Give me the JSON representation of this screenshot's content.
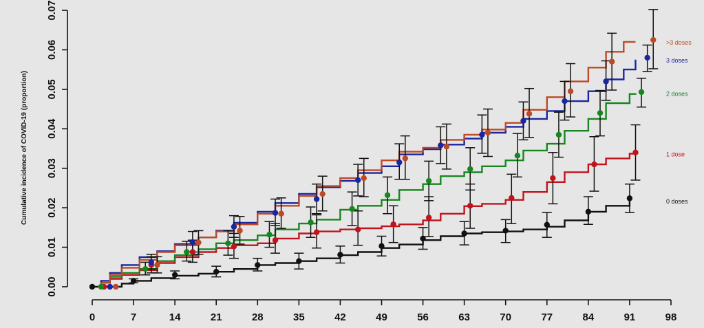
{
  "chart_data": {
    "type": "line",
    "title": "",
    "xlabel": "",
    "ylabel": "Cumulative incidence of COVID-19 (proportion)",
    "xlim": [
      0,
      98
    ],
    "ylim": [
      0,
      0.07
    ],
    "grid": false,
    "x_ticks": [
      0,
      7,
      14,
      21,
      28,
      35,
      42,
      49,
      56,
      63,
      70,
      77,
      84,
      91,
      98
    ],
    "y_ticks": [
      0.0,
      0.01,
      0.02,
      0.03,
      0.04,
      0.05,
      0.06,
      0.07
    ],
    "y_tick_labels": [
      "0.00",
      "0.01",
      "0.02",
      "0.03",
      "0.04",
      "0.05",
      "0.06",
      "0.07"
    ],
    "series": [
      {
        "name": "0 doses",
        "color": "#111111",
        "line": [
          [
            0,
            0
          ],
          [
            3,
            0
          ],
          [
            5,
            0.0008
          ],
          [
            7,
            0.0015
          ],
          [
            10,
            0.0022
          ],
          [
            14,
            0.0028
          ],
          [
            18,
            0.0033
          ],
          [
            21,
            0.0038
          ],
          [
            24,
            0.0045
          ],
          [
            28,
            0.0055
          ],
          [
            31,
            0.006
          ],
          [
            35,
            0.0065
          ],
          [
            38,
            0.0072
          ],
          [
            42,
            0.008
          ],
          [
            45,
            0.0088
          ],
          [
            49,
            0.0098
          ],
          [
            52,
            0.0107
          ],
          [
            56,
            0.0118
          ],
          [
            59,
            0.0128
          ],
          [
            63,
            0.0135
          ],
          [
            66,
            0.0138
          ],
          [
            70,
            0.014
          ],
          [
            73,
            0.0145
          ],
          [
            77,
            0.0152
          ],
          [
            80,
            0.0168
          ],
          [
            84,
            0.019
          ],
          [
            87,
            0.0205
          ],
          [
            91,
            0.0218
          ]
        ],
        "points": [
          {
            "x": 0,
            "y": 0
          },
          {
            "x": 7,
            "y": 0.0015,
            "lo": 0.001,
            "hi": 0.002
          },
          {
            "x": 14,
            "y": 0.003,
            "lo": 0.002,
            "hi": 0.004
          },
          {
            "x": 21,
            "y": 0.0038,
            "lo": 0.0025,
            "hi": 0.0052
          },
          {
            "x": 28,
            "y": 0.0055,
            "lo": 0.004,
            "hi": 0.0072
          },
          {
            "x": 35,
            "y": 0.0065,
            "lo": 0.0045,
            "hi": 0.0085
          },
          {
            "x": 42,
            "y": 0.0081,
            "lo": 0.006,
            "hi": 0.0103
          },
          {
            "x": 49,
            "y": 0.0103,
            "lo": 0.0078,
            "hi": 0.0128
          },
          {
            "x": 56,
            "y": 0.0122,
            "lo": 0.0095,
            "hi": 0.015
          },
          {
            "x": 63,
            "y": 0.0135,
            "lo": 0.0106,
            "hi": 0.0165
          },
          {
            "x": 70,
            "y": 0.0142,
            "lo": 0.0112,
            "hi": 0.017
          },
          {
            "x": 77,
            "y": 0.0157,
            "lo": 0.0125,
            "hi": 0.0188
          },
          {
            "x": 84,
            "y": 0.019,
            "lo": 0.0158,
            "hi": 0.0228
          },
          {
            "x": 91,
            "y": 0.0224,
            "lo": 0.0188,
            "hi": 0.026
          }
        ]
      },
      {
        "name": "1 dose",
        "color": "#c0141c",
        "line": [
          [
            1,
            0
          ],
          [
            1.5,
            0.001
          ],
          [
            3,
            0.002
          ],
          [
            5,
            0.003
          ],
          [
            8,
            0.0042
          ],
          [
            11,
            0.006
          ],
          [
            14,
            0.0075
          ],
          [
            18,
            0.0088
          ],
          [
            21,
            0.0098
          ],
          [
            24,
            0.0105
          ],
          [
            28,
            0.011
          ],
          [
            31,
            0.0122
          ],
          [
            35,
            0.0135
          ],
          [
            38,
            0.014
          ],
          [
            42,
            0.0145
          ],
          [
            45,
            0.0148
          ],
          [
            49,
            0.0153
          ],
          [
            52,
            0.0158
          ],
          [
            56,
            0.0168
          ],
          [
            59,
            0.0185
          ],
          [
            63,
            0.0204
          ],
          [
            66,
            0.021
          ],
          [
            70,
            0.022
          ],
          [
            73,
            0.024
          ],
          [
            77,
            0.0265
          ],
          [
            80,
            0.029
          ],
          [
            84,
            0.031
          ],
          [
            87,
            0.0325
          ],
          [
            91,
            0.0337
          ],
          [
            92,
            0.0337
          ]
        ],
        "points": [
          {
            "x": 2,
            "y": 0
          },
          {
            "x": 10,
            "y": 0.0055,
            "lo": 0.0035,
            "hi": 0.0076
          },
          {
            "x": 17,
            "y": 0.0088,
            "lo": 0.0062,
            "hi": 0.0118
          },
          {
            "x": 24,
            "y": 0.0102,
            "lo": 0.0072,
            "hi": 0.0135
          },
          {
            "x": 31,
            "y": 0.0118,
            "lo": 0.0085,
            "hi": 0.016
          },
          {
            "x": 38,
            "y": 0.0138,
            "lo": 0.0098,
            "hi": 0.0182
          },
          {
            "x": 45,
            "y": 0.0145,
            "lo": 0.0105,
            "hi": 0.0192
          },
          {
            "x": 51,
            "y": 0.0158,
            "lo": 0.0112,
            "hi": 0.0205
          },
          {
            "x": 57,
            "y": 0.0175,
            "lo": 0.0127,
            "hi": 0.0228
          },
          {
            "x": 64,
            "y": 0.0205,
            "lo": 0.0148,
            "hi": 0.026
          },
          {
            "x": 71,
            "y": 0.0225,
            "lo": 0.016,
            "hi": 0.0285
          },
          {
            "x": 78,
            "y": 0.0275,
            "lo": 0.021,
            "hi": 0.034
          },
          {
            "x": 85,
            "y": 0.031,
            "lo": 0.0242,
            "hi": 0.038
          },
          {
            "x": 92,
            "y": 0.034,
            "lo": 0.027,
            "hi": 0.041
          }
        ]
      },
      {
        "name": "2 doses",
        "color": "#17861f",
        "line": [
          [
            1,
            0
          ],
          [
            1.5,
            0.001
          ],
          [
            3,
            0.0025
          ],
          [
            5,
            0.0035
          ],
          [
            8,
            0.0045
          ],
          [
            11,
            0.0065
          ],
          [
            14,
            0.008
          ],
          [
            18,
            0.0095
          ],
          [
            21,
            0.011
          ],
          [
            24,
            0.0118
          ],
          [
            28,
            0.013
          ],
          [
            31,
            0.0145
          ],
          [
            35,
            0.016
          ],
          [
            38,
            0.017
          ],
          [
            42,
            0.0195
          ],
          [
            45,
            0.0205
          ],
          [
            49,
            0.022
          ],
          [
            52,
            0.0245
          ],
          [
            56,
            0.026
          ],
          [
            59,
            0.028
          ],
          [
            63,
            0.029
          ],
          [
            66,
            0.0305
          ],
          [
            70,
            0.032
          ],
          [
            73,
            0.0345
          ],
          [
            77,
            0.0362
          ],
          [
            80,
            0.0395
          ],
          [
            84,
            0.0425
          ],
          [
            87,
            0.0465
          ],
          [
            91,
            0.0488
          ],
          [
            92,
            0.049
          ]
        ],
        "points": [
          {
            "x": 1.5,
            "y": 0
          },
          {
            "x": 9,
            "y": 0.0045,
            "lo": 0.003,
            "hi": 0.0062
          },
          {
            "x": 16,
            "y": 0.0088,
            "lo": 0.0065,
            "hi": 0.0115
          },
          {
            "x": 23,
            "y": 0.011,
            "lo": 0.008,
            "hi": 0.0142
          },
          {
            "x": 30,
            "y": 0.0132,
            "lo": 0.01,
            "hi": 0.0165
          },
          {
            "x": 37,
            "y": 0.0163,
            "lo": 0.0125,
            "hi": 0.0202
          },
          {
            "x": 44,
            "y": 0.0197,
            "lo": 0.0155,
            "hi": 0.024
          },
          {
            "x": 50,
            "y": 0.0232,
            "lo": 0.0185,
            "hi": 0.0278
          },
          {
            "x": 57,
            "y": 0.0268,
            "lo": 0.0218,
            "hi": 0.0318
          },
          {
            "x": 64,
            "y": 0.0298,
            "lo": 0.0245,
            "hi": 0.0352
          },
          {
            "x": 72,
            "y": 0.0332,
            "lo": 0.0278,
            "hi": 0.0388
          },
          {
            "x": 79,
            "y": 0.0385,
            "lo": 0.0328,
            "hi": 0.0442
          },
          {
            "x": 86,
            "y": 0.044,
            "lo": 0.0382,
            "hi": 0.0497
          },
          {
            "x": 93,
            "y": 0.0493,
            "lo": 0.0455,
            "hi": 0.0528
          }
        ]
      },
      {
        "name": "3 doses",
        "color": "#1a25a0",
        "line": [
          [
            1,
            0
          ],
          [
            1.5,
            0.0015
          ],
          [
            3,
            0.0035
          ],
          [
            5,
            0.0055
          ],
          [
            8,
            0.0075
          ],
          [
            11,
            0.009
          ],
          [
            14,
            0.0108
          ],
          [
            18,
            0.0125
          ],
          [
            21,
            0.0142
          ],
          [
            24,
            0.0162
          ],
          [
            28,
            0.019
          ],
          [
            31,
            0.0212
          ],
          [
            35,
            0.0235
          ],
          [
            38,
            0.0252
          ],
          [
            42,
            0.0268
          ],
          [
            45,
            0.0288
          ],
          [
            49,
            0.0305
          ],
          [
            52,
            0.0335
          ],
          [
            56,
            0.0348
          ],
          [
            59,
            0.036
          ],
          [
            63,
            0.0375
          ],
          [
            66,
            0.039
          ],
          [
            70,
            0.0405
          ],
          [
            73,
            0.0425
          ],
          [
            77,
            0.0445
          ],
          [
            80,
            0.047
          ],
          [
            84,
            0.0495
          ],
          [
            87,
            0.0525
          ],
          [
            90,
            0.055
          ],
          [
            92,
            0.0575
          ]
        ],
        "points": [
          {
            "x": 3,
            "y": 0
          },
          {
            "x": 10,
            "y": 0.0062,
            "lo": 0.0045,
            "hi": 0.0082
          },
          {
            "x": 17,
            "y": 0.0113,
            "lo": 0.0088,
            "hi": 0.014
          },
          {
            "x": 24,
            "y": 0.0152,
            "lo": 0.0125,
            "hi": 0.018
          },
          {
            "x": 31,
            "y": 0.0187,
            "lo": 0.0155,
            "hi": 0.0222
          },
          {
            "x": 38,
            "y": 0.0222,
            "lo": 0.0185,
            "hi": 0.026
          },
          {
            "x": 45,
            "y": 0.027,
            "lo": 0.023,
            "hi": 0.031
          },
          {
            "x": 52,
            "y": 0.0315,
            "lo": 0.0272,
            "hi": 0.0362
          },
          {
            "x": 59,
            "y": 0.0358,
            "lo": 0.0312,
            "hi": 0.0405
          },
          {
            "x": 66,
            "y": 0.0385,
            "lo": 0.0338,
            "hi": 0.0435
          },
          {
            "x": 73,
            "y": 0.042,
            "lo": 0.0372,
            "hi": 0.0468
          },
          {
            "x": 80,
            "y": 0.047,
            "lo": 0.0422,
            "hi": 0.052
          },
          {
            "x": 87,
            "y": 0.052,
            "lo": 0.0472,
            "hi": 0.0572
          },
          {
            "x": 94,
            "y": 0.058,
            "lo": 0.0545,
            "hi": 0.0612
          }
        ]
      },
      {
        "name": ">3 doses",
        "color": "#bd4a25",
        "line": [
          [
            1,
            0
          ],
          [
            1.5,
            0.001
          ],
          [
            3,
            0.003
          ],
          [
            5,
            0.0048
          ],
          [
            8,
            0.0068
          ],
          [
            11,
            0.0088
          ],
          [
            14,
            0.0105
          ],
          [
            18,
            0.0125
          ],
          [
            21,
            0.014
          ],
          [
            24,
            0.0158
          ],
          [
            28,
            0.0185
          ],
          [
            31,
            0.0205
          ],
          [
            35,
            0.023
          ],
          [
            38,
            0.0255
          ],
          [
            42,
            0.0275
          ],
          [
            45,
            0.0295
          ],
          [
            49,
            0.032
          ],
          [
            52,
            0.0342
          ],
          [
            56,
            0.0352
          ],
          [
            59,
            0.0372
          ],
          [
            63,
            0.0385
          ],
          [
            66,
            0.0398
          ],
          [
            70,
            0.0415
          ],
          [
            73,
            0.0448
          ],
          [
            77,
            0.048
          ],
          [
            80,
            0.052
          ],
          [
            84,
            0.0555
          ],
          [
            87,
            0.0595
          ],
          [
            90,
            0.062
          ],
          [
            92,
            0.062
          ]
        ],
        "points": [
          {
            "x": 4,
            "y": 0
          },
          {
            "x": 11,
            "y": 0.0055,
            "lo": 0.0035,
            "hi": 0.0076
          },
          {
            "x": 18,
            "y": 0.0112,
            "lo": 0.0082,
            "hi": 0.0142
          },
          {
            "x": 25,
            "y": 0.0142,
            "lo": 0.0108,
            "hi": 0.0178
          },
          {
            "x": 32,
            "y": 0.0185,
            "lo": 0.0148,
            "hi": 0.0225
          },
          {
            "x": 39,
            "y": 0.0235,
            "lo": 0.0192,
            "hi": 0.028
          },
          {
            "x": 46,
            "y": 0.0275,
            "lo": 0.0228,
            "hi": 0.0325
          },
          {
            "x": 53,
            "y": 0.0325,
            "lo": 0.0272,
            "hi": 0.0382
          },
          {
            "x": 60,
            "y": 0.0355,
            "lo": 0.0298,
            "hi": 0.0412
          },
          {
            "x": 67,
            "y": 0.039,
            "lo": 0.033,
            "hi": 0.045
          },
          {
            "x": 74,
            "y": 0.0438,
            "lo": 0.0378,
            "hi": 0.0502
          },
          {
            "x": 81,
            "y": 0.0495,
            "lo": 0.043,
            "hi": 0.0565
          },
          {
            "x": 88,
            "y": 0.057,
            "lo": 0.0498,
            "hi": 0.0642
          },
          {
            "x": 95,
            "y": 0.0625,
            "lo": 0.0552,
            "hi": 0.0702
          }
        ]
      }
    ]
  }
}
